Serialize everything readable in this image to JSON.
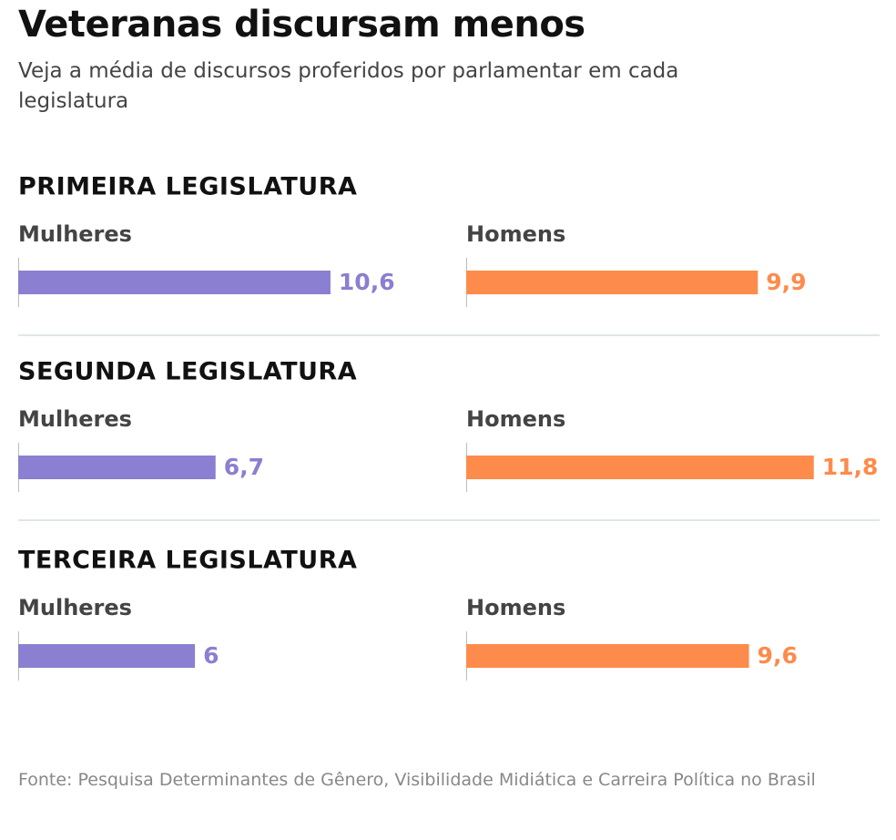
{
  "title": "Veteranas discursam menos",
  "subtitle": "Veja a média de discursos proferidos por parlamentar em cada legislatura",
  "source": "Fonte: Pesquisa Determinantes de Gênero, Visibilidade Midiática e Carreira Política no Brasil",
  "chart_data": [
    {
      "type": "bar",
      "title": "PRIMEIRA LEGISLATURA",
      "categories": [
        "Mulheres",
        "Homens"
      ],
      "values": [
        10.6,
        9.9
      ],
      "value_labels": [
        "10,6",
        "9,9"
      ],
      "colors": [
        "#8a7fd0",
        "#fd8b4b"
      ]
    },
    {
      "type": "bar",
      "title": "SEGUNDA LEGISLATURA",
      "categories": [
        "Mulheres",
        "Homens"
      ],
      "values": [
        6.7,
        11.8
      ],
      "value_labels": [
        "6,7",
        "11,8"
      ],
      "colors": [
        "#8a7fd0",
        "#fd8b4b"
      ]
    },
    {
      "type": "bar",
      "title": "TERCEIRA LEGISLATURA",
      "categories": [
        "Mulheres",
        "Homens"
      ],
      "values": [
        6,
        9.6
      ],
      "value_labels": [
        "6",
        "9,6"
      ],
      "colors": [
        "#8a7fd0",
        "#fd8b4b"
      ]
    }
  ]
}
